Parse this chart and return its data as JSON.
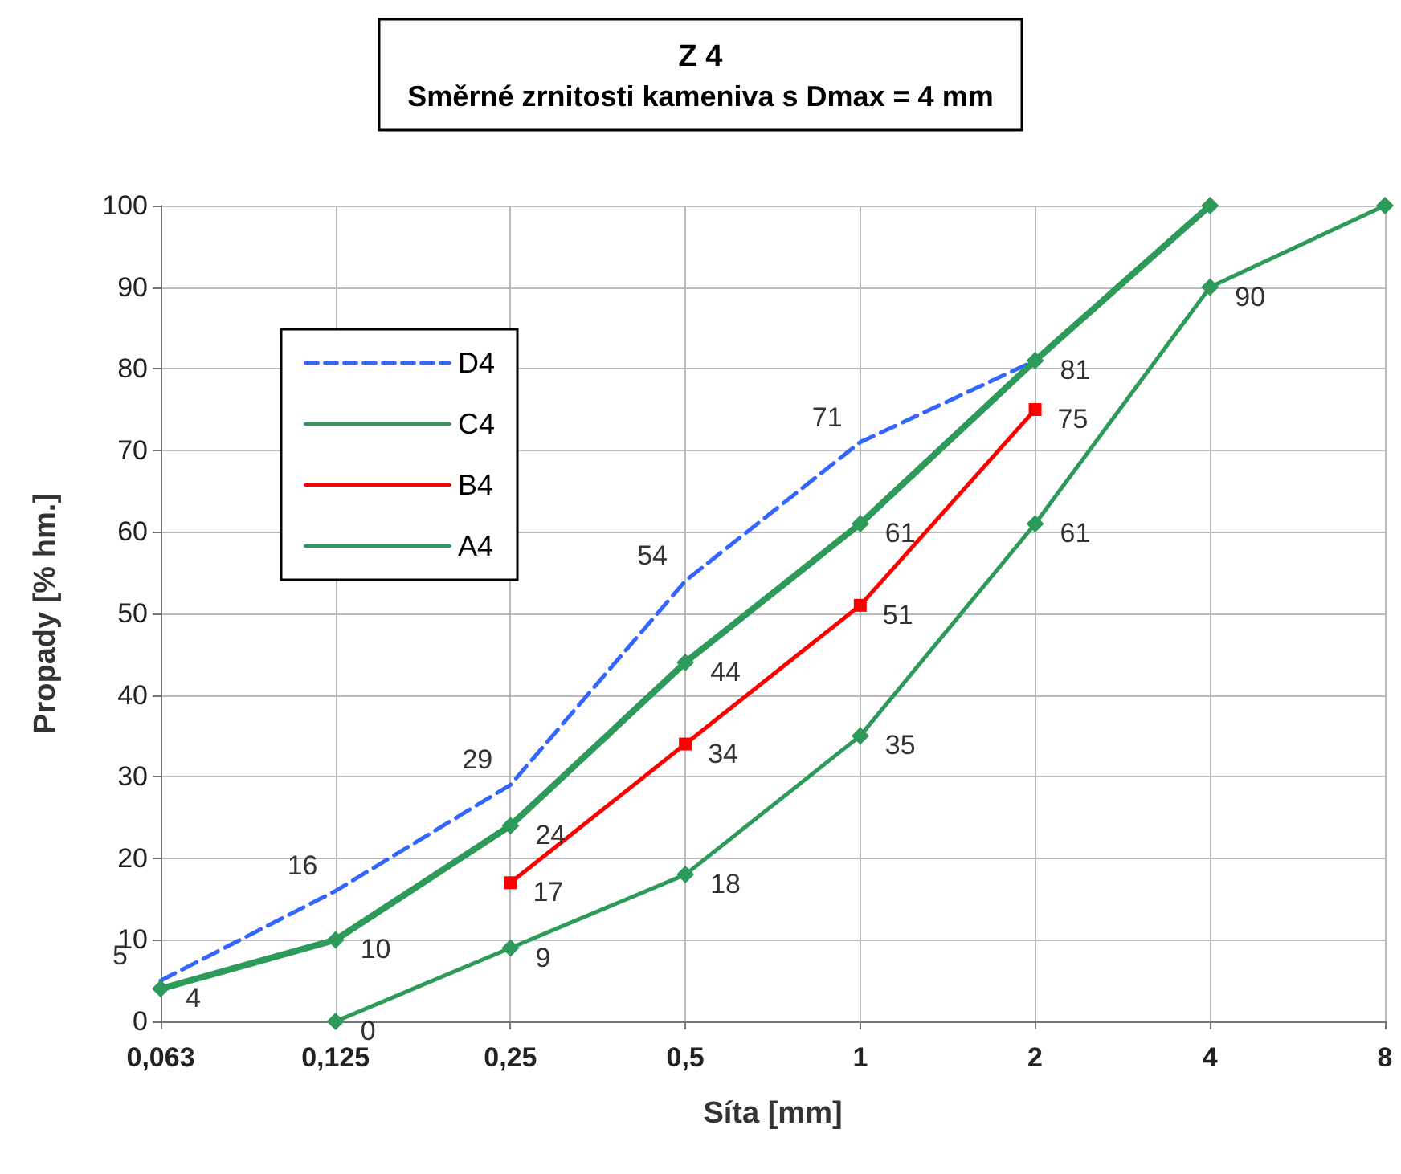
{
  "chart_data": {
    "type": "line",
    "title": "Z 4",
    "subtitle": "Směrné zrnitosti kameniva s Dmax = 4 mm",
    "xlabel": "Síta [mm]",
    "ylabel": "Propady [% hm.]",
    "categories": [
      "0,063",
      "0,125",
      "0,25",
      "0,5",
      "1",
      "2",
      "4",
      "8"
    ],
    "series": [
      {
        "name": "D4",
        "color": "#3366ff",
        "line_style": "dashed",
        "marker": "none",
        "values": [
          5,
          16,
          29,
          54,
          71,
          81,
          null,
          null
        ],
        "value_labels": [
          "5",
          "16",
          "29",
          "54",
          "71",
          null,
          null,
          null
        ]
      },
      {
        "name": "C4",
        "color": "#2e9a5a",
        "line_style": "solid",
        "marker": "diamond",
        "values": [
          4,
          10,
          24,
          44,
          61,
          81,
          100,
          null
        ],
        "value_labels": [
          "4",
          "10",
          "24",
          "44",
          "61",
          "81",
          null,
          null
        ]
      },
      {
        "name": "B4",
        "color": "#ff0000",
        "line_style": "solid",
        "marker": "square",
        "values": [
          null,
          null,
          17,
          34,
          51,
          75,
          null,
          null
        ],
        "value_labels": [
          null,
          null,
          "17",
          "34",
          "51",
          "75",
          null,
          null
        ]
      },
      {
        "name": "A4",
        "color": "#2e9a5a",
        "line_style": "solid",
        "marker": "diamond",
        "values": [
          null,
          0,
          9,
          18,
          35,
          61,
          90,
          100
        ],
        "value_labels": [
          null,
          "0",
          "9",
          "18",
          "35",
          "61",
          "90",
          null
        ]
      }
    ],
    "ylim": [
      0,
      100
    ],
    "yticks": [
      0,
      10,
      20,
      30,
      40,
      50,
      60,
      70,
      80,
      90,
      100
    ],
    "grid": true,
    "legend": "top left"
  }
}
